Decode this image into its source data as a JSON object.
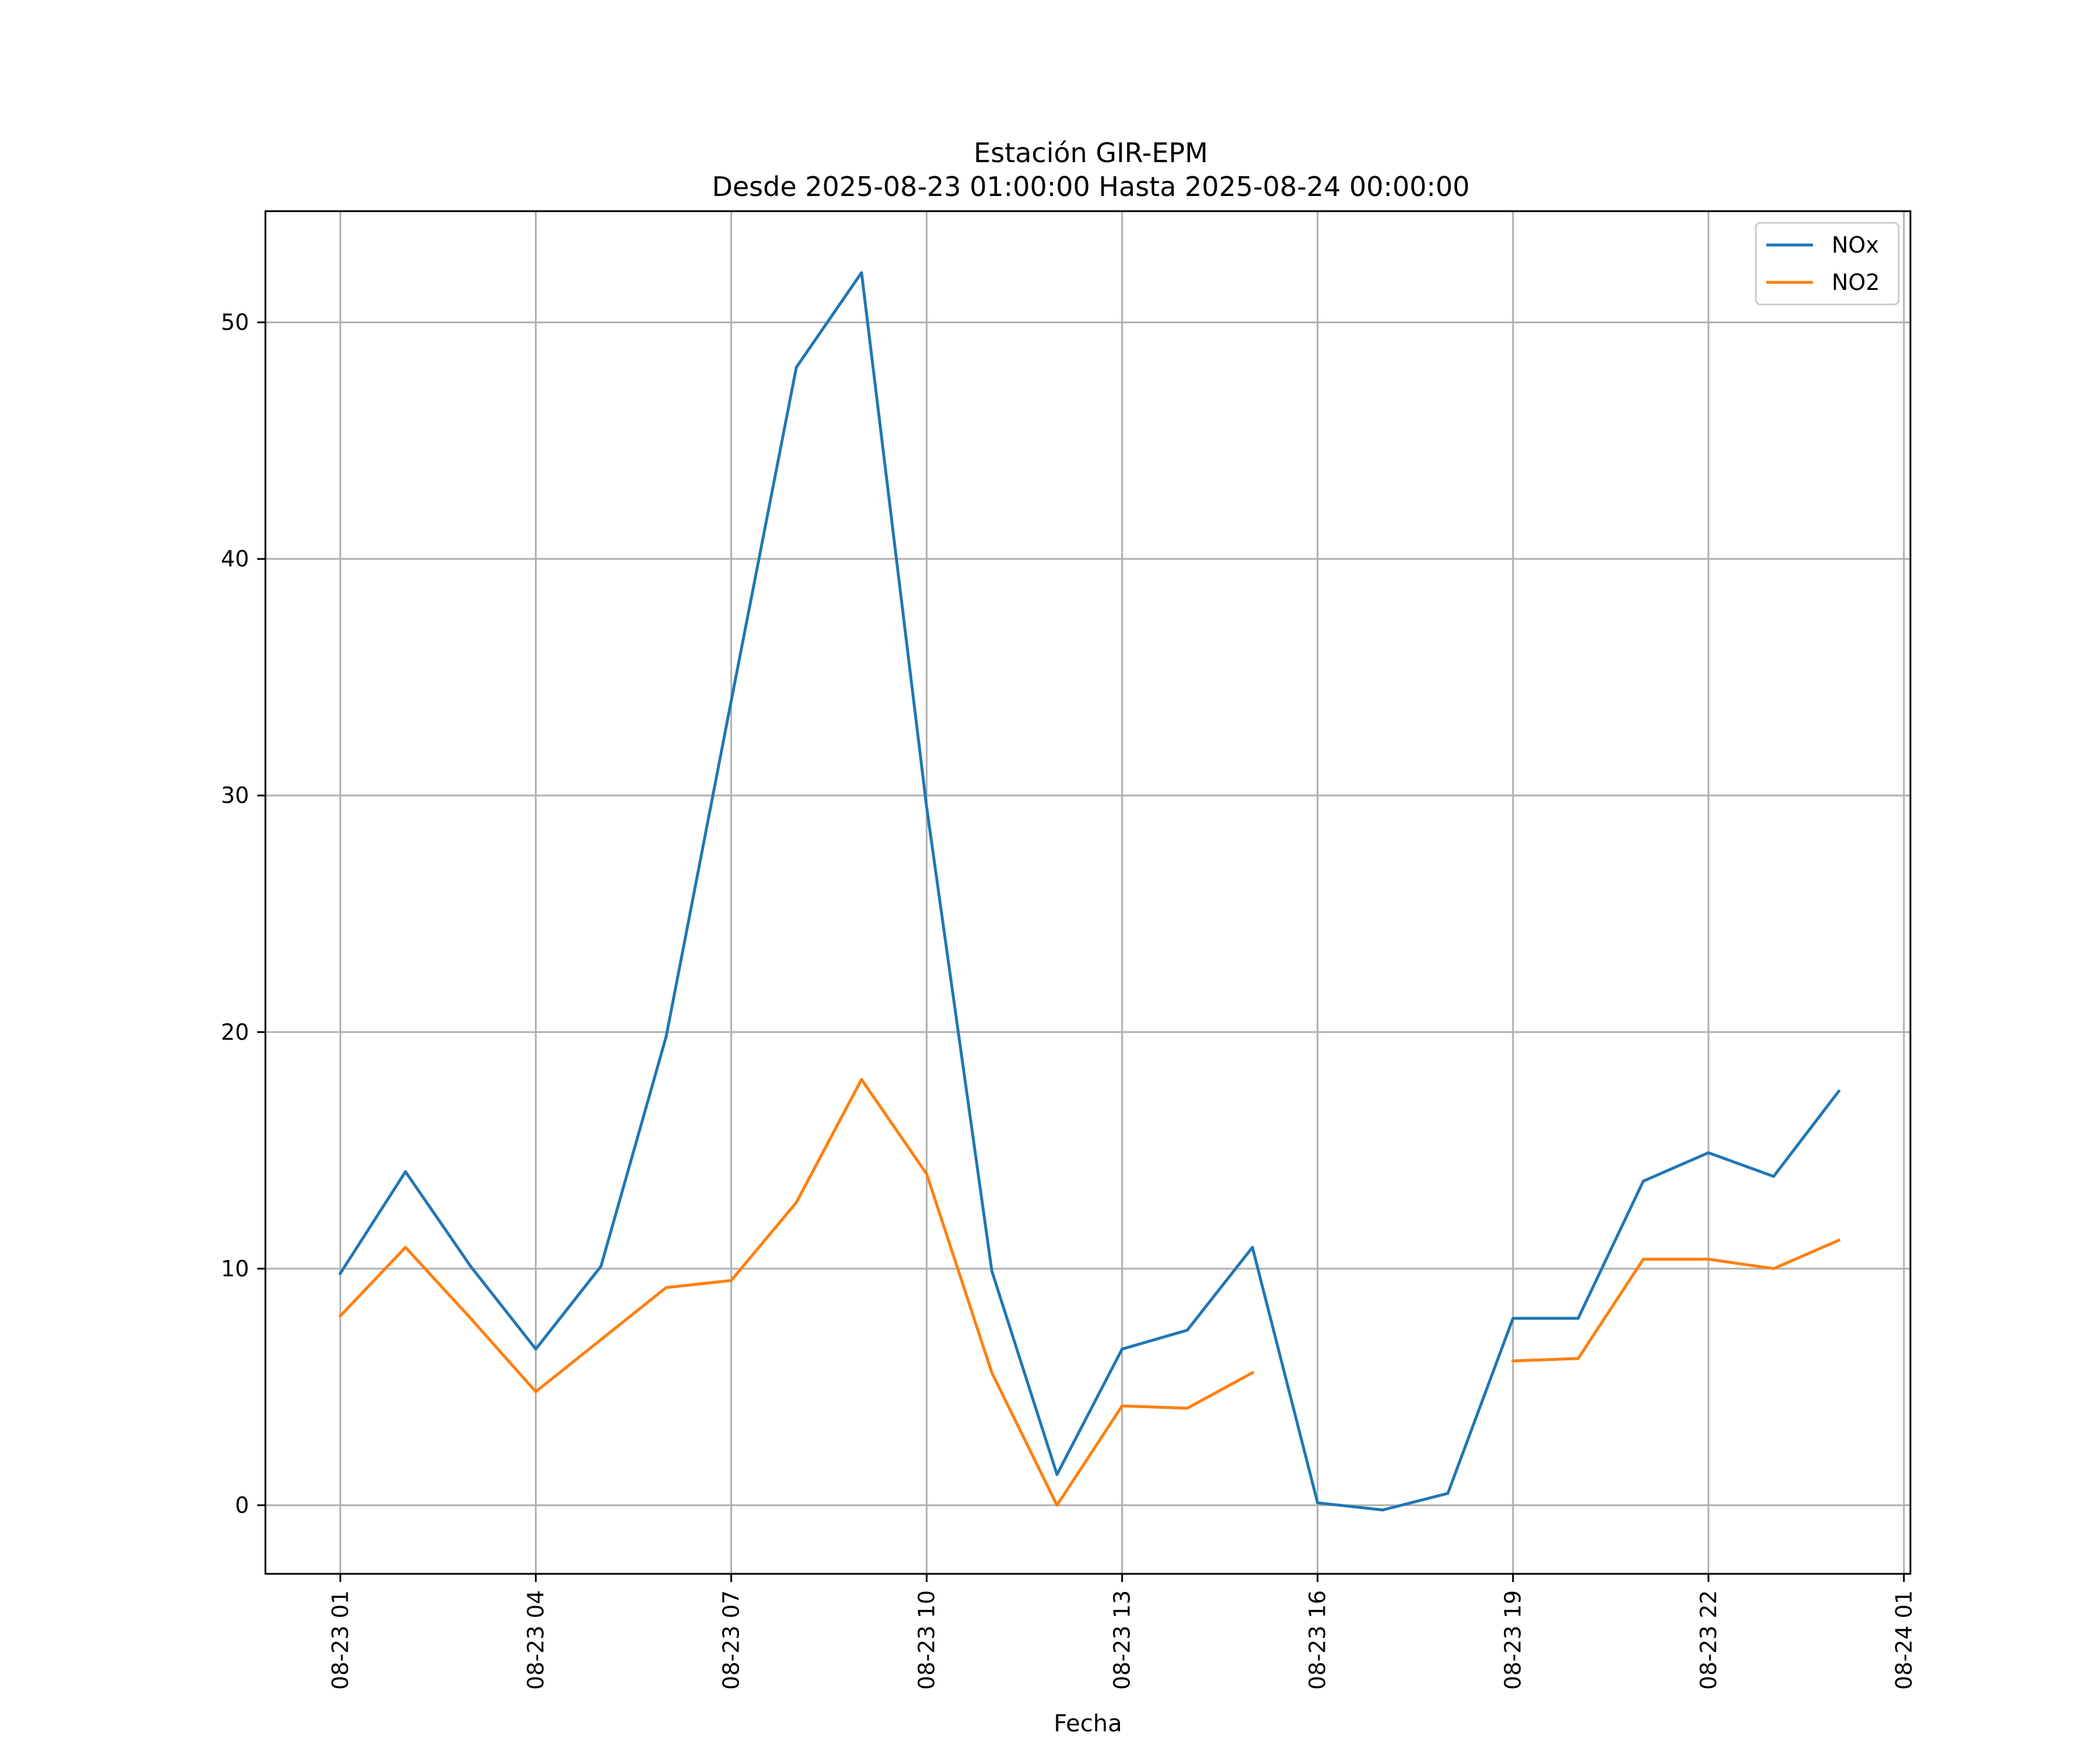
{
  "chart_data": {
    "type": "line",
    "title": "Estación GIR-EPM",
    "subtitle": "Desde 2025-08-23 01:00:00 Hasta 2025-08-24 00:00:00",
    "xlabel": "Fecha",
    "ylabel": "",
    "x_unit": "hour of 2025-08-23 (24 = 2025-08-24 00:00)",
    "x": [
      1,
      2,
      3,
      4,
      5,
      6,
      7,
      8,
      9,
      10,
      11,
      12,
      13,
      14,
      15,
      16,
      17,
      18,
      19,
      20,
      21,
      22,
      23,
      24
    ],
    "xlim": [
      -0.15,
      25.1
    ],
    "ylim": [
      -2.9,
      54.7
    ],
    "x_ticks": [
      {
        "value": 1,
        "label": "08-23 01"
      },
      {
        "value": 4,
        "label": "08-23 04"
      },
      {
        "value": 7,
        "label": "08-23 07"
      },
      {
        "value": 10,
        "label": "08-23 10"
      },
      {
        "value": 13,
        "label": "08-23 13"
      },
      {
        "value": 16,
        "label": "08-23 16"
      },
      {
        "value": 19,
        "label": "08-23 19"
      },
      {
        "value": 22,
        "label": "08-23 22"
      },
      {
        "value": 25,
        "label": "08-24 01"
      }
    ],
    "y_ticks": [
      {
        "value": 0,
        "label": "0"
      },
      {
        "value": 10,
        "label": "10"
      },
      {
        "value": 20,
        "label": "20"
      },
      {
        "value": 30,
        "label": "30"
      },
      {
        "value": 40,
        "label": "40"
      },
      {
        "value": 50,
        "label": "50"
      }
    ],
    "grid": true,
    "legend_position": "top-right",
    "series": [
      {
        "name": "NOx",
        "color": "#1f77b4",
        "values": [
          9.8,
          14.1,
          10.1,
          6.6,
          10.1,
          19.8,
          34.0,
          48.1,
          52.1,
          29.5,
          9.9,
          1.3,
          6.6,
          7.4,
          10.9,
          0.1,
          -0.2,
          0.5,
          7.9,
          7.9,
          13.7,
          14.9,
          13.9,
          17.5
        ]
      },
      {
        "name": "NO2",
        "color": "#ff7f0e",
        "values": [
          8.0,
          10.9,
          7.9,
          4.8,
          7.0,
          9.2,
          9.5,
          12.8,
          18.0,
          14.0,
          5.6,
          0.0,
          4.2,
          4.1,
          5.6,
          null,
          null,
          null,
          6.1,
          6.2,
          10.4,
          10.4,
          10.0,
          11.2
        ]
      }
    ]
  }
}
